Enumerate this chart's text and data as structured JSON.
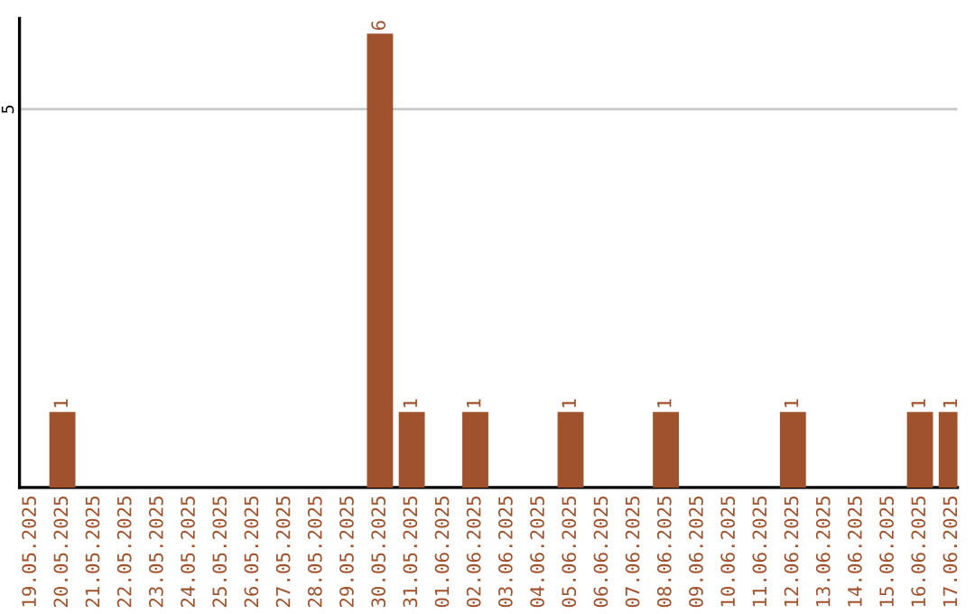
{
  "chart_data": {
    "type": "bar",
    "categories": [
      "19.05.2025",
      "20.05.2025",
      "21.05.2025",
      "22.05.2025",
      "23.05.2025",
      "24.05.2025",
      "25.05.2025",
      "26.05.2025",
      "27.05.2025",
      "28.05.2025",
      "29.05.2025",
      "30.05.2025",
      "31.05.2025",
      "01.06.2025",
      "02.06.2025",
      "03.06.2025",
      "04.06.2025",
      "05.06.2025",
      "06.06.2025",
      "07.06.2025",
      "08.06.2025",
      "09.06.2025",
      "10.06.2025",
      "11.06.2025",
      "12.06.2025",
      "13.06.2025",
      "14.06.2025",
      "15.06.2025",
      "16.06.2025",
      "17.06.2025"
    ],
    "values": [
      0,
      1,
      0,
      0,
      0,
      0,
      0,
      0,
      0,
      0,
      0,
      6,
      1,
      0,
      1,
      0,
      0,
      1,
      0,
      0,
      1,
      0,
      0,
      0,
      1,
      0,
      0,
      0,
      1,
      1
    ],
    "value_labels": [
      null,
      "1",
      null,
      null,
      null,
      null,
      null,
      null,
      null,
      null,
      null,
      "6",
      "1",
      null,
      "1",
      null,
      null,
      "1",
      null,
      null,
      "1",
      null,
      null,
      null,
      "1",
      null,
      null,
      null,
      "1",
      "1"
    ],
    "color": "#a0522d",
    "ylim": [
      0,
      6.2
    ],
    "yticks": [
      5
    ],
    "grid": "y"
  }
}
